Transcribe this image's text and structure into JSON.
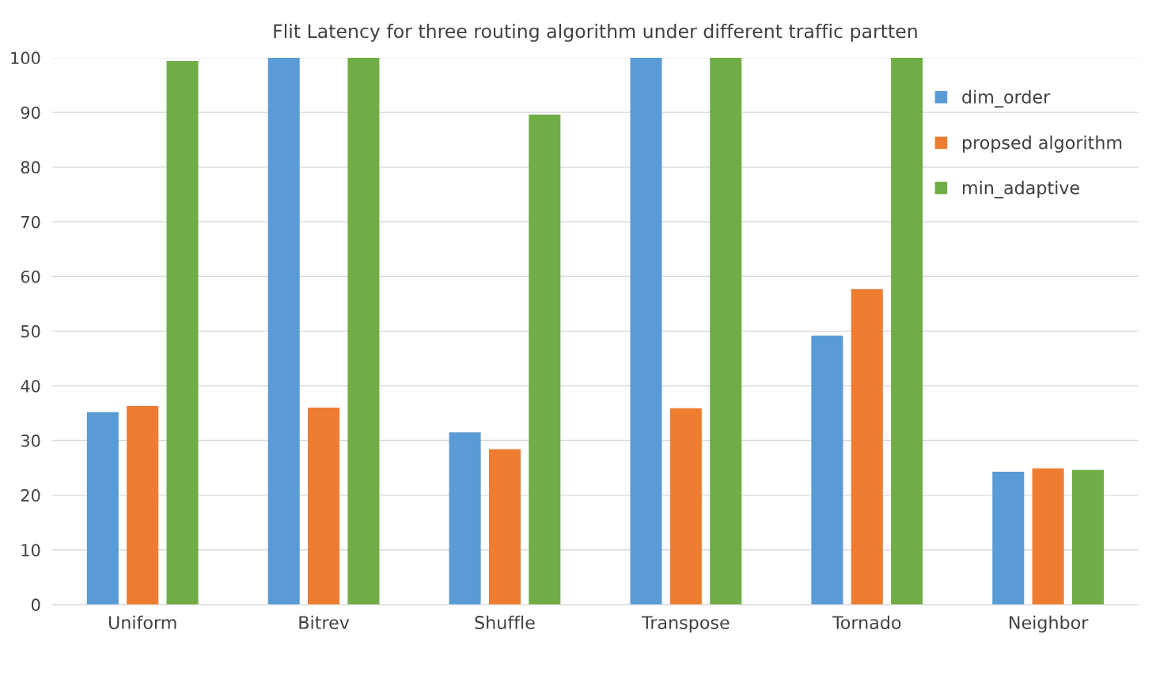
{
  "chart_data": {
    "type": "bar",
    "title": "Flit Latency for three routing algorithm under different traffic partten",
    "categories": [
      "Uniform",
      "Bitrev",
      "Shuffle",
      "Transpose",
      "Tornado",
      "Neighbor"
    ],
    "series": [
      {
        "name": "dim_order",
        "color": "#5b9bd5",
        "values": [
          35.2,
          100,
          31.5,
          100,
          49.2,
          24.3
        ]
      },
      {
        "name": "propsed algorithm",
        "color": "#ed7d31",
        "values": [
          36.3,
          36.0,
          28.4,
          35.9,
          57.7,
          24.9
        ]
      },
      {
        "name": "min_adaptive",
        "color": "#70ad47",
        "values": [
          99.4,
          100,
          89.6,
          100,
          100,
          24.6
        ]
      }
    ],
    "ylim": [
      0,
      100
    ],
    "yticks": [
      0,
      10,
      20,
      30,
      40,
      50,
      60,
      70,
      80,
      90,
      100
    ],
    "grid": "y",
    "legend": "top right"
  }
}
